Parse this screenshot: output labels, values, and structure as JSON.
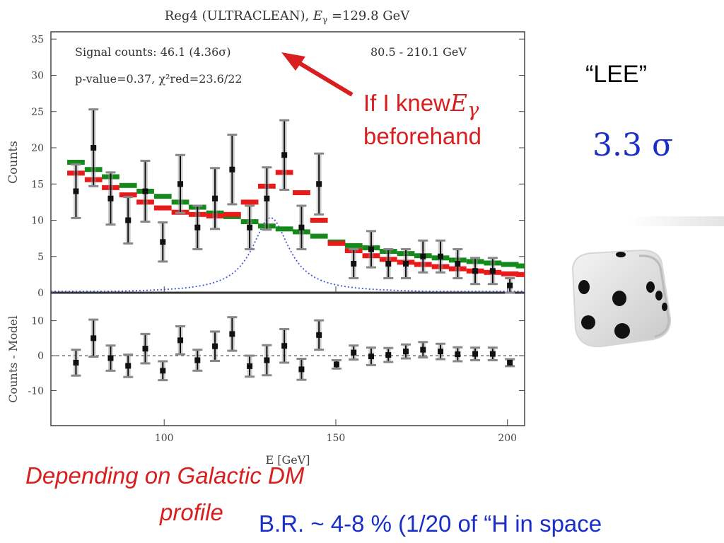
{
  "chart_data": {
    "type": "scatter",
    "title_pre": "Reg4 (ULTRACLEAN), ",
    "title_sym": "E",
    "title_sub": "γ",
    "title_post": " =129.8 GeV",
    "text_signal": "Signal counts: 46.1 (4.36σ)",
    "text_range": "80.5 - 210.1 GeV",
    "text_pvalue": "p-value=0.37, χ²red=23.6/22",
    "xlabel": "E [GeV]",
    "ylabel_top": "Counts",
    "ylabel_bottom": "Counts - Model",
    "xlim": [
      67,
      205
    ],
    "ylim_top": [
      0,
      36
    ],
    "ylim_bottom": [
      -20,
      18
    ],
    "xticks": [
      "100",
      "150",
      "200"
    ],
    "yticks_top": [
      "0",
      "5",
      "10",
      "15",
      "20",
      "25",
      "30",
      "35"
    ],
    "yticks_bottom": [
      "-10",
      "0",
      "10"
    ],
    "bin_centers": [
      74.3,
      79.4,
      84.4,
      89.5,
      94.5,
      99.6,
      104.7,
      109.7,
      114.8,
      119.8,
      124.9,
      129.9,
      135.0,
      140.0,
      145.1,
      150.2,
      155.2,
      160.3,
      165.3,
      170.4,
      175.4,
      180.5,
      185.5,
      190.6,
      195.7,
      200.7,
      205.0
    ],
    "counts": [
      14,
      20,
      13,
      10,
      14,
      7,
      15,
      9,
      13,
      17,
      9,
      13,
      19,
      9,
      15,
      null,
      4,
      6,
      4,
      4,
      5,
      5,
      4,
      3,
      3,
      1,
      null
    ],
    "count_errors": [
      3.7,
      5.3,
      3.6,
      3.2,
      4.2,
      2.7,
      4.0,
      3.0,
      4.2,
      4.8,
      3.0,
      4.3,
      4.8,
      3.0,
      4.2,
      null,
      2.0,
      2.5,
      2.0,
      2.0,
      2.2,
      2.2,
      2.0,
      1.8,
      1.8,
      1.0,
      null
    ],
    "series": [
      {
        "name": "",
        "color": "#16891c",
        "values": [
          18,
          17,
          16,
          14.8,
          14,
          13.3,
          12.5,
          11.8,
          11,
          10.5,
          9.8,
          9.2,
          8.8,
          8.4,
          7.8,
          7.0,
          6.5,
          6.2,
          5.7,
          5.4,
          5.1,
          4.8,
          4.5,
          4.3,
          4.1,
          3.9,
          3.7
        ]
      },
      {
        "name": "",
        "color": "#e81b1b",
        "values": [
          16.5,
          15.6,
          14.5,
          13.5,
          12.5,
          11.7,
          11.1,
          10.8,
          10.6,
          10.8,
          12.5,
          14.7,
          16.6,
          13.8,
          10.0,
          6.8,
          5.8,
          5.1,
          4.6,
          4.2,
          3.9,
          3.6,
          3.3,
          3.0,
          2.8,
          2.6,
          2.5
        ]
      }
    ],
    "signal_curve_color": "#4455dd",
    "residuals": [
      -2,
      5,
      -0.7,
      -2.9,
      2,
      -4.3,
      4.4,
      -1.3,
      2.7,
      6.2,
      -3,
      -1.3,
      2.8,
      -3.9,
      5.9,
      -2.5,
      0.9,
      -0.2,
      0.2,
      1.2,
      1.7,
      1.2,
      0.4,
      0.5,
      0.5,
      -2,
      null
    ],
    "residual_errors": [
      3.7,
      5.3,
      3.6,
      3.2,
      4.2,
      2.7,
      4.0,
      3.0,
      4.2,
      4.8,
      3.0,
      4.3,
      4.8,
      3.0,
      4.2,
      1.2,
      2.0,
      2.5,
      2.0,
      2.0,
      2.2,
      2.2,
      2.0,
      1.8,
      1.8,
      1.0,
      null
    ]
  },
  "annotations": {
    "lee": "“LEE”",
    "sigma": "3.3 σ",
    "knew_text": "If I knew",
    "knew_sym": "E",
    "knew_sub": "γ",
    "beforehand": "beforehand",
    "galactic_1": "Depending on Galactic DM",
    "galactic_2": "profile",
    "br": "B.R.  ~   4-8 %  (1/20 of “H in space"
  },
  "colors": {
    "annotation_red": "#d81e1e",
    "annotation_blue": "#1a2fc7"
  },
  "icons": {
    "dice": "dice-icon",
    "arrow": "red-arrow-icon"
  }
}
